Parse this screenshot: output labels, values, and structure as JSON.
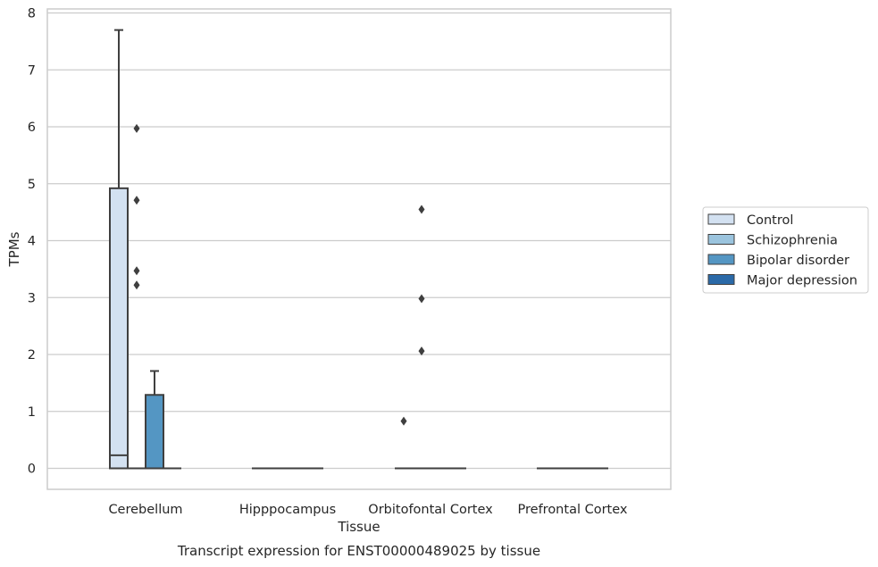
{
  "chart_data": {
    "type": "box",
    "title": "",
    "caption": "Transcript expression for ENST00000489025 by tissue",
    "xlabel": "Tissue",
    "ylabel": "TPMs",
    "ylim": [
      -0.38,
      8.05
    ],
    "yticks": [
      0,
      1,
      2,
      3,
      4,
      5,
      6,
      7,
      8
    ],
    "grid": "horizontal",
    "legend_position": "right",
    "categories": [
      "Cerebellum",
      "Hipppocampus",
      "Orbitofontal Cortex",
      "Prefrontal Cortex"
    ],
    "series": [
      {
        "name": "Control",
        "color": "#d3e1f1",
        "boxes": [
          {
            "q1": 0,
            "median": 0.23,
            "q3": 4.92,
            "whisker_low": 0,
            "whisker_high": 7.7,
            "outliers": []
          },
          {
            "q1": 0,
            "median": 0,
            "q3": 0,
            "whisker_low": 0,
            "whisker_high": 0,
            "outliers": []
          },
          {
            "q1": 0,
            "median": 0,
            "q3": 0,
            "whisker_low": 0,
            "whisker_high": 0,
            "outliers": [
              0.83
            ]
          },
          {
            "q1": 0,
            "median": 0,
            "q3": 0,
            "whisker_low": 0,
            "whisker_high": 0,
            "outliers": []
          }
        ]
      },
      {
        "name": "Schizophrenia",
        "color": "#9bc4de",
        "boxes": [
          {
            "q1": 0,
            "median": 0,
            "q3": 0,
            "whisker_low": 0,
            "whisker_high": 0,
            "outliers": [
              5.97,
              4.71,
              3.47,
              3.22
            ]
          },
          {
            "q1": 0,
            "median": 0,
            "q3": 0,
            "whisker_low": 0,
            "whisker_high": 0,
            "outliers": []
          },
          {
            "q1": 0,
            "median": 0,
            "q3": 0,
            "whisker_low": 0,
            "whisker_high": 0,
            "outliers": [
              4.55,
              2.98,
              2.06
            ]
          },
          {
            "q1": 0,
            "median": 0,
            "q3": 0,
            "whisker_low": 0,
            "whisker_high": 0,
            "outliers": []
          }
        ]
      },
      {
        "name": "Bipolar disorder",
        "color": "#5496c3",
        "boxes": [
          {
            "q1": 0,
            "median": 0,
            "q3": 1.29,
            "whisker_low": 0,
            "whisker_high": 1.71,
            "outliers": []
          },
          {
            "q1": 0,
            "median": 0,
            "q3": 0,
            "whisker_low": 0,
            "whisker_high": 0,
            "outliers": []
          },
          {
            "q1": 0,
            "median": 0,
            "q3": 0,
            "whisker_low": 0,
            "whisker_high": 0,
            "outliers": []
          },
          {
            "q1": 0,
            "median": 0,
            "q3": 0,
            "whisker_low": 0,
            "whisker_high": 0,
            "outliers": []
          }
        ]
      },
      {
        "name": "Major depression",
        "color": "#2b6aa8",
        "boxes": [
          {
            "q1": 0,
            "median": 0,
            "q3": 0,
            "whisker_low": 0,
            "whisker_high": 0,
            "outliers": []
          },
          {
            "q1": 0,
            "median": 0,
            "q3": 0,
            "whisker_low": 0,
            "whisker_high": 0,
            "outliers": []
          },
          {
            "q1": 0,
            "median": 0,
            "q3": 0,
            "whisker_low": 0,
            "whisker_high": 0,
            "outliers": []
          },
          {
            "q1": 0,
            "median": 0,
            "q3": 0,
            "whisker_low": 0,
            "whisker_high": 0,
            "outliers": []
          }
        ]
      }
    ]
  }
}
